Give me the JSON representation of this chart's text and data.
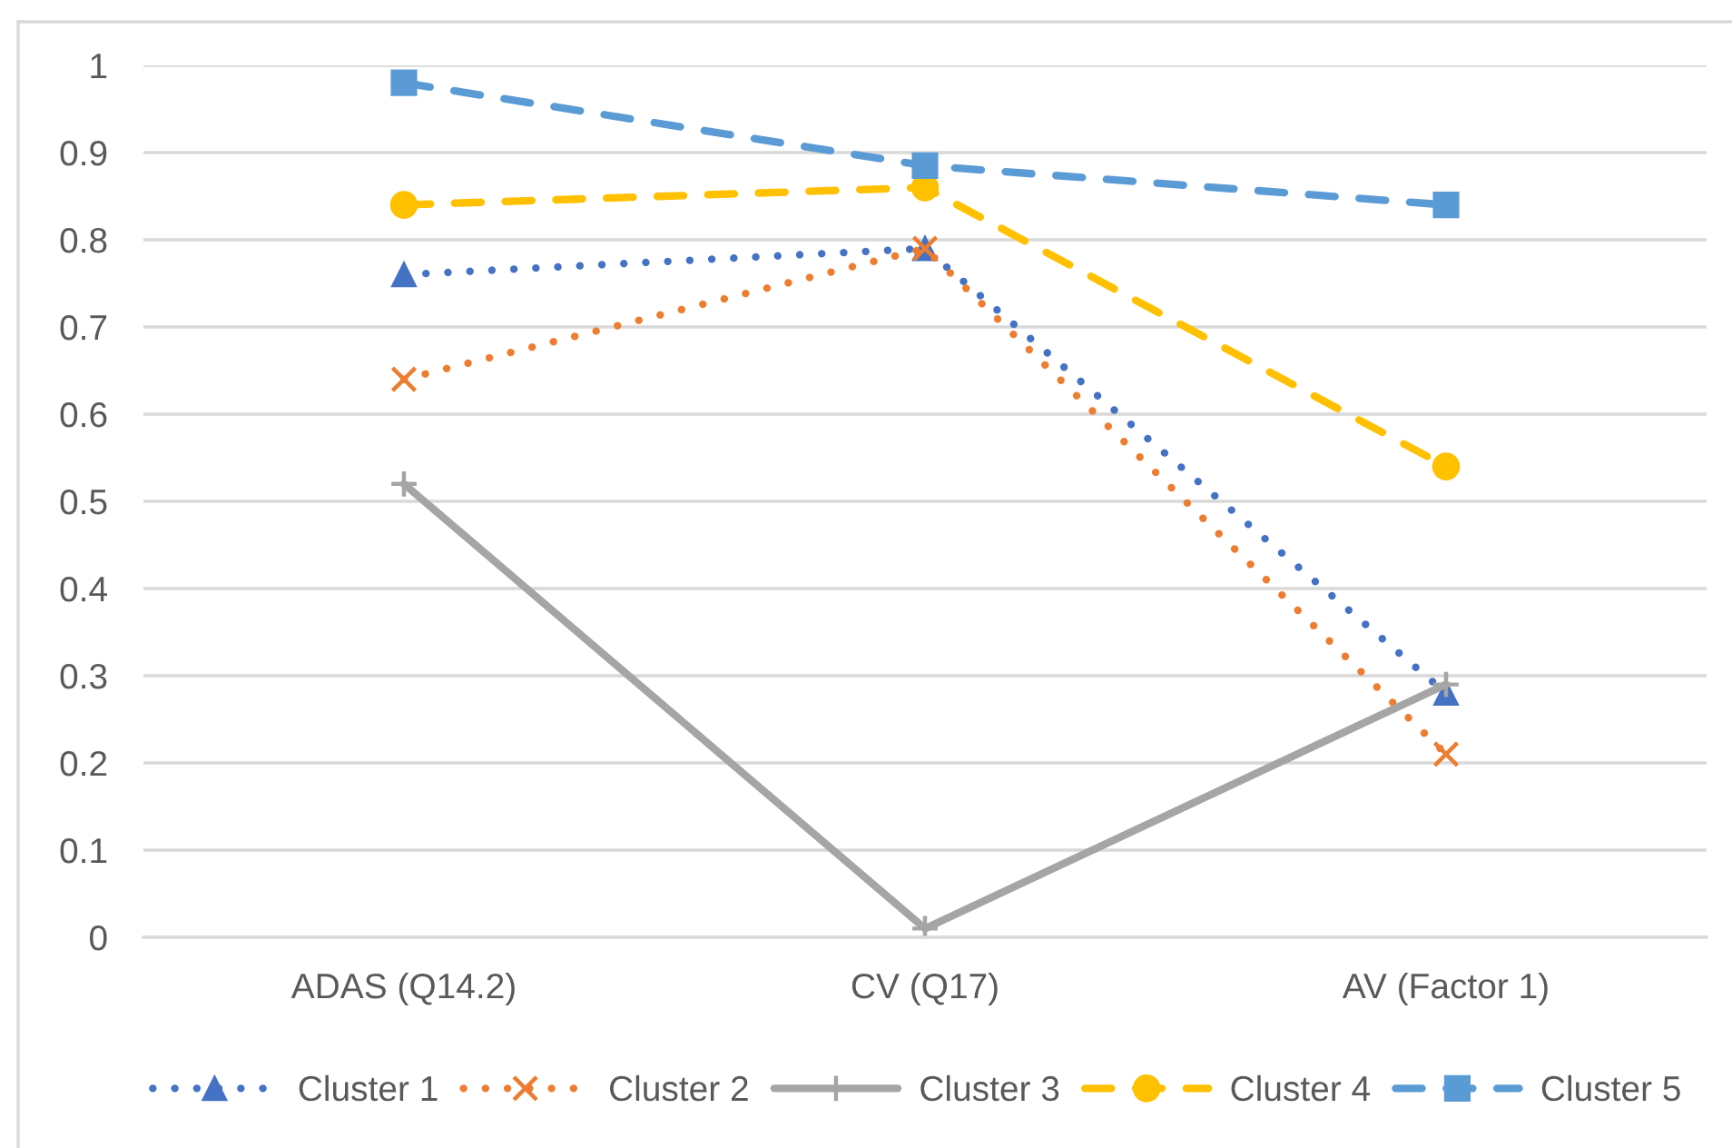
{
  "chart_data": {
    "type": "line",
    "categories": [
      "ADAS (Q14.2)",
      "CV (Q17)",
      "AV (Factor 1)"
    ],
    "ylim": [
      0,
      1
    ],
    "yticks": [
      0,
      0.1,
      0.2,
      0.3,
      0.4,
      0.5,
      0.6,
      0.7,
      0.8,
      0.9,
      1
    ],
    "grid": "y",
    "legend": "bottom",
    "series": [
      {
        "name": "Cluster 1",
        "color": "#4472c4",
        "marker": "triangle",
        "line_style": "dotted",
        "values": [
          0.76,
          0.79,
          0.28
        ]
      },
      {
        "name": "Cluster 2",
        "color": "#ed7d31",
        "marker": "cross",
        "line_style": "dotted",
        "values": [
          0.64,
          0.79,
          0.21
        ]
      },
      {
        "name": "Cluster 3",
        "color": "#a5a5a5",
        "marker": "plus",
        "line_style": "solid",
        "values": [
          0.52,
          0.01,
          0.29
        ]
      },
      {
        "name": "Cluster 4",
        "color": "#ffc000",
        "marker": "circle",
        "line_style": "dashed",
        "values": [
          0.84,
          0.86,
          0.54
        ]
      },
      {
        "name": "Cluster 5",
        "color": "#5b9bd5",
        "marker": "square",
        "line_style": "dashed",
        "values": [
          0.98,
          0.885,
          0.84
        ]
      }
    ]
  }
}
